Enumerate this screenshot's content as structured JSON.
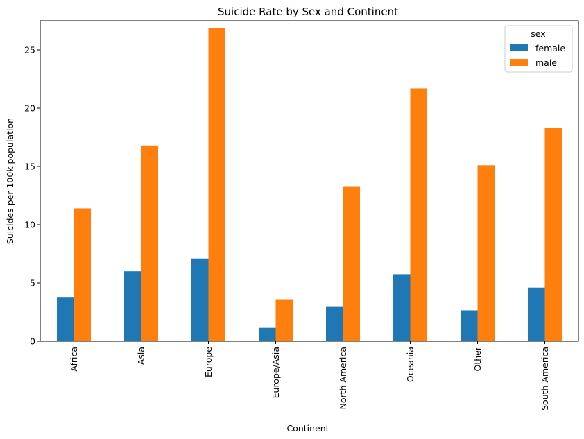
{
  "chart_data": {
    "type": "bar",
    "title": "Suicide Rate by Sex and Continent",
    "xlabel": "Continent",
    "ylabel": "Suicides per 100k population",
    "categories": [
      "Africa",
      "Asia",
      "Europe",
      "Europe/Asia",
      "North America",
      "Oceania",
      "Other",
      "South America"
    ],
    "series": [
      {
        "name": "female",
        "color": "#1f77b4",
        "values": [
          3.8,
          6.0,
          7.1,
          1.15,
          3.0,
          5.75,
          2.65,
          4.6
        ]
      },
      {
        "name": "male",
        "color": "#ff7f0e",
        "values": [
          11.4,
          16.8,
          26.9,
          3.6,
          13.3,
          21.7,
          15.1,
          18.3
        ]
      }
    ],
    "ylim": [
      0,
      27.5
    ],
    "yticks": [
      0,
      5,
      10,
      15,
      20,
      25
    ],
    "grid": false,
    "legend": {
      "title": "sex",
      "placement": "top-right"
    }
  }
}
